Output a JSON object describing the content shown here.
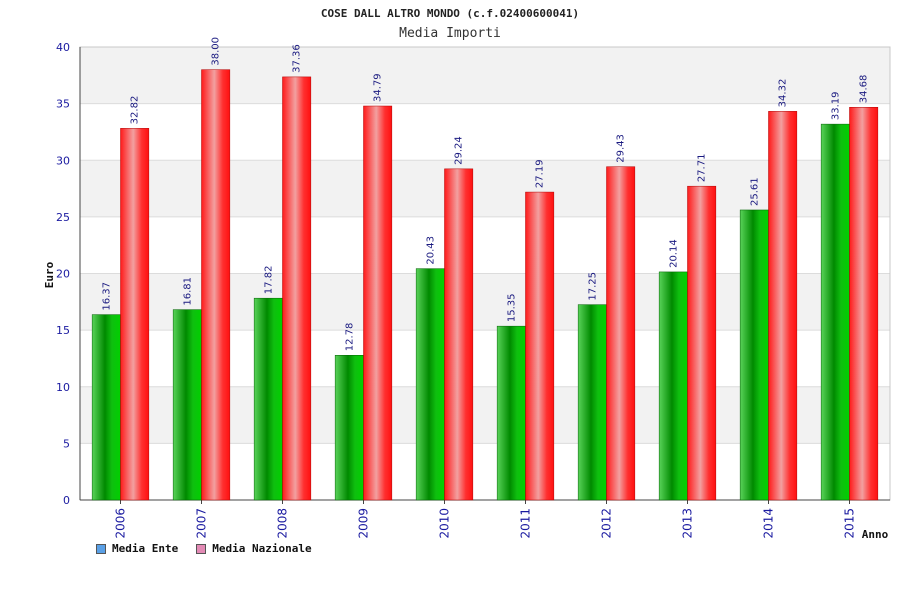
{
  "chart_data": {
    "type": "bar",
    "title": "COSE DALL ALTRO MONDO (c.f.02400600041)",
    "subtitle": "Media Importi",
    "xlabel": "Anno",
    "ylabel": "Euro",
    "ylim": [
      0,
      40
    ],
    "yticks": [
      0,
      5,
      10,
      15,
      20,
      25,
      30,
      35,
      40
    ],
    "grid": true,
    "legend_position": "bottom-left",
    "categories": [
      "2006",
      "2007",
      "2008",
      "2009",
      "2010",
      "2011",
      "2012",
      "2013",
      "2014",
      "2015"
    ],
    "series": [
      {
        "name": "Media Ente",
        "values": [
          16.37,
          16.81,
          17.82,
          12.78,
          20.43,
          15.35,
          17.25,
          20.14,
          25.61,
          33.19
        ],
        "color": "#00a000",
        "legend_color": "#5aa0e6"
      },
      {
        "name": "Media Nazionale",
        "values": [
          32.82,
          38.0,
          37.36,
          34.79,
          29.24,
          27.19,
          29.43,
          27.71,
          34.32,
          34.68
        ],
        "color": "#e8101a",
        "legend_color": "#e38ab5"
      }
    ],
    "data_labels": [
      [
        "16.37",
        "16.81",
        "17.82",
        "12.78",
        "20.43",
        "15.35",
        "17.25",
        "20.14",
        "25.61",
        "33.19"
      ],
      [
        "32.82",
        "38.00",
        "37.36",
        "34.79",
        "29.24",
        "27.19",
        "29.43",
        "27.71",
        "34.32",
        "34.68"
      ]
    ]
  }
}
